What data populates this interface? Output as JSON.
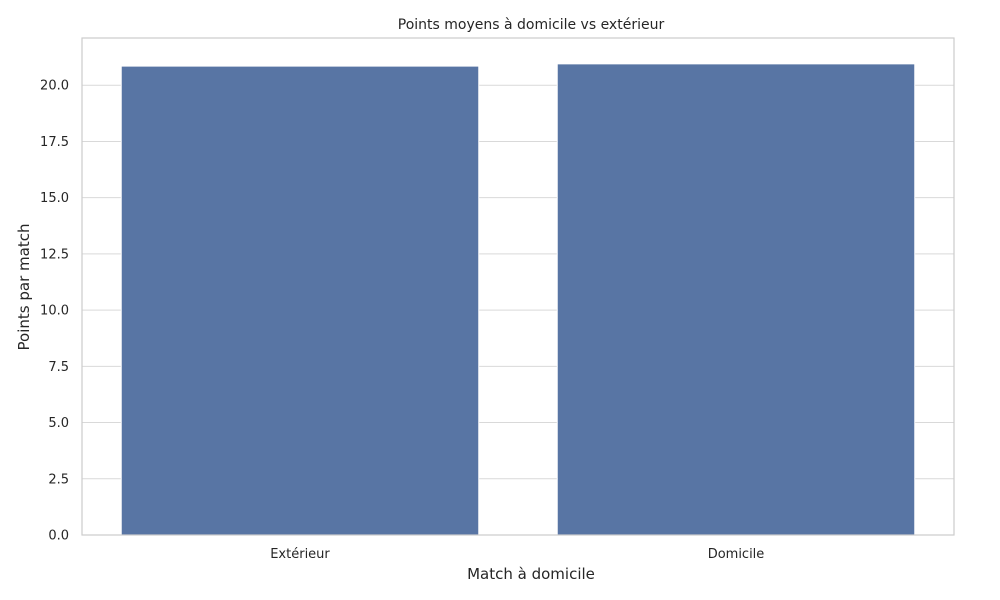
{
  "chart_data": {
    "type": "bar",
    "title": "Points moyens à domicile vs extérieur",
    "xlabel": "Match à domicile",
    "ylabel": "Points par match",
    "categories": [
      "Extérieur",
      "Domicile"
    ],
    "values": [
      20.85,
      20.95
    ],
    "ylim": [
      0,
      22.1
    ],
    "yticks": [
      "0.0",
      "2.5",
      "5.0",
      "7.5",
      "10.0",
      "12.5",
      "15.0",
      "17.5",
      "20.0"
    ],
    "grid": true,
    "bar_color": "#5875a4"
  }
}
